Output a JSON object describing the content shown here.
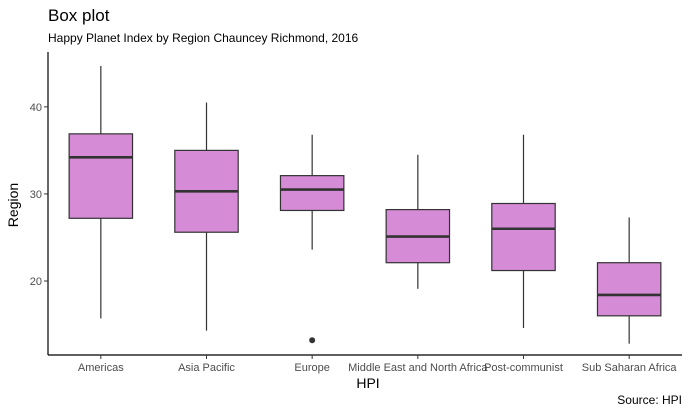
{
  "chart_data": {
    "type": "box",
    "title": "Box plot",
    "subtitle": "Happy Planet Index by Region Chauncey Richmond, 2016",
    "xlabel": "HPI",
    "ylabel": "Region",
    "caption": "Source: HPI",
    "ylim": [
      11.5,
      46.3
    ],
    "yticks": [
      20,
      30,
      40
    ],
    "grid": false,
    "fill_color": "#d58bd5",
    "line_color": "#333333",
    "categories": [
      "Americas",
      "Asia Pacific",
      "Europe",
      "Middle East and North Africa",
      "Post-communist",
      "Sub Saharan Africa"
    ],
    "boxes": [
      {
        "category": "Americas",
        "min": 15.7,
        "q1": 27.2,
        "median": 34.2,
        "q3": 36.9,
        "max": 44.7,
        "outliers": []
      },
      {
        "category": "Asia Pacific",
        "min": 14.3,
        "q1": 25.6,
        "median": 30.3,
        "q3": 35.0,
        "max": 40.5,
        "outliers": []
      },
      {
        "category": "Europe",
        "min": 23.6,
        "q1": 28.1,
        "median": 30.5,
        "q3": 32.1,
        "max": 36.8,
        "outliers": [
          13.2
        ]
      },
      {
        "category": "Middle East and North Africa",
        "min": 19.1,
        "q1": 22.1,
        "median": 25.1,
        "q3": 28.2,
        "max": 34.5,
        "outliers": []
      },
      {
        "category": "Post-communist",
        "min": 14.6,
        "q1": 21.2,
        "median": 26.0,
        "q3": 28.9,
        "max": 36.8,
        "outliers": []
      },
      {
        "category": "Sub Saharan Africa",
        "min": 12.8,
        "q1": 16.0,
        "median": 18.4,
        "q3": 22.1,
        "max": 27.3,
        "outliers": []
      }
    ]
  }
}
